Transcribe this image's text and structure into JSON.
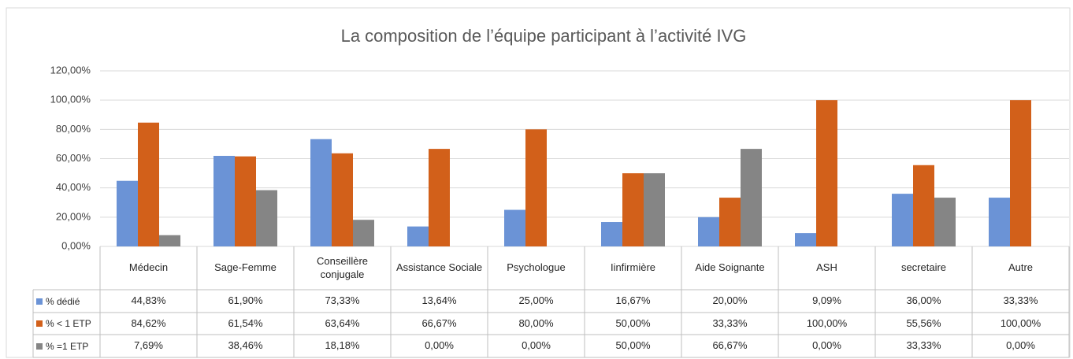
{
  "chart_data": {
    "type": "bar",
    "title": "La composition de l’équipe participant à l’activité IVG",
    "categories": [
      "Médecin",
      "Sage-Femme",
      "Conseillère conjugale",
      "Assistance Sociale",
      "Psychologue",
      "Iinfirmière",
      "Aide Soignante",
      "ASH",
      "secretaire",
      "Autre"
    ],
    "series": [
      {
        "name": "% dédié",
        "color": "#6b93d6",
        "values": [
          44.83,
          61.9,
          73.33,
          13.64,
          25.0,
          16.67,
          20.0,
          9.09,
          36.0,
          33.33
        ],
        "value_labels": [
          "44,83%",
          "61,90%",
          "73,33%",
          "13,64%",
          "25,00%",
          "16,67%",
          "20,00%",
          "9,09%",
          "36,00%",
          "33,33%"
        ]
      },
      {
        "name": "% < 1 ETP",
        "color": "#d2601a",
        "values": [
          84.62,
          61.54,
          63.64,
          66.67,
          80.0,
          50.0,
          33.33,
          100.0,
          55.56,
          100.0
        ],
        "value_labels": [
          "84,62%",
          "61,54%",
          "63,64%",
          "66,67%",
          "80,00%",
          "50,00%",
          "33,33%",
          "100,00%",
          "55,56%",
          "100,00%"
        ]
      },
      {
        "name": "% =1 ETP",
        "color": "#858585",
        "values": [
          7.69,
          38.46,
          18.18,
          0.0,
          0.0,
          50.0,
          66.67,
          0.0,
          33.33,
          0.0
        ],
        "value_labels": [
          "7,69%",
          "38,46%",
          "18,18%",
          "0,00%",
          "0,00%",
          "50,00%",
          "66,67%",
          "0,00%",
          "33,33%",
          "0,00%"
        ]
      }
    ],
    "ylim": [
      0,
      120
    ],
    "yticks": [
      {
        "value": 0,
        "label": "0,00%"
      },
      {
        "value": 20,
        "label": "20,00%"
      },
      {
        "value": 40,
        "label": "40,00%"
      },
      {
        "value": 60,
        "label": "60,00%"
      },
      {
        "value": 80,
        "label": "80,00%"
      },
      {
        "value": 100,
        "label": "100,00%"
      },
      {
        "value": 120,
        "label": "120,00%"
      }
    ],
    "grid": true
  }
}
